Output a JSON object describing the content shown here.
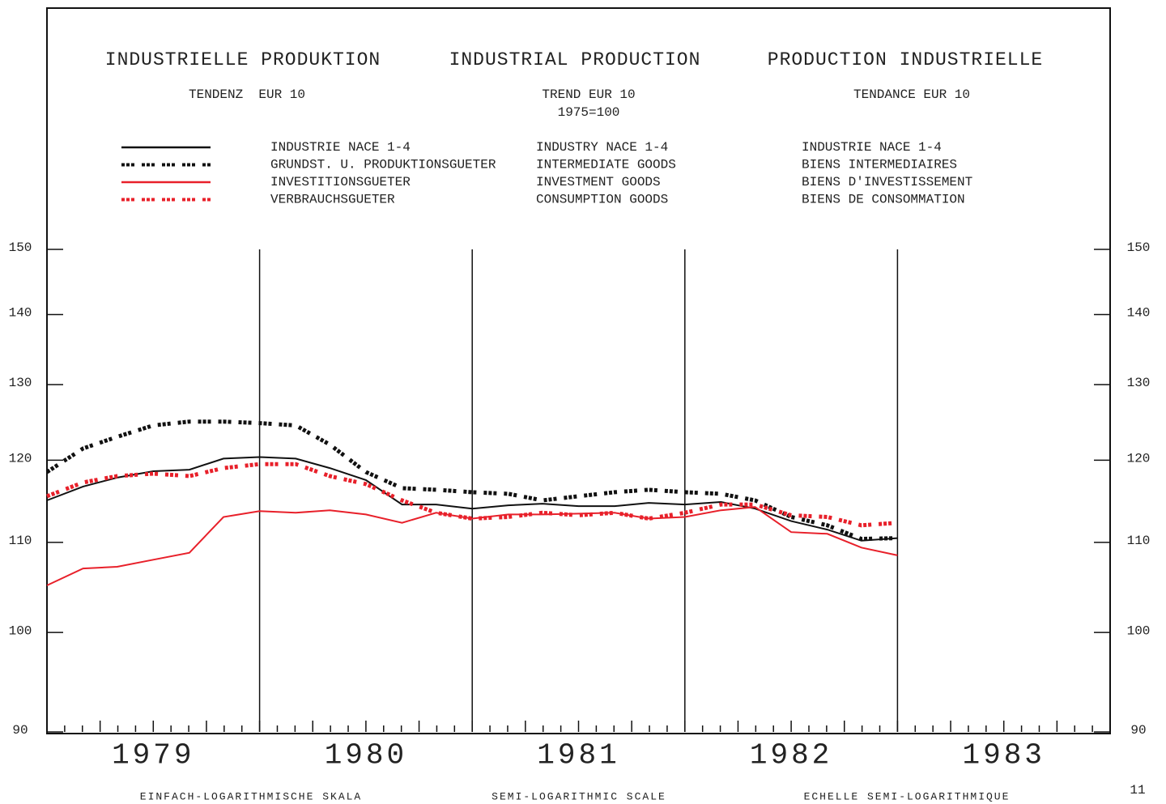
{
  "chart_data": {
    "type": "line",
    "titles": [
      "INDUSTRIELLE PRODUKTION",
      "INDUSTRIAL PRODUCTION",
      "PRODUCTION INDUSTRIELLE"
    ],
    "subtitles": [
      "TENDENZ  EUR 10",
      "TREND EUR 10",
      "TENDANCE EUR 10"
    ],
    "base": "1975=100",
    "footers": [
      "EINFACH-LOGARITHMISCHE SKALA",
      "SEMI-LOGARITHMIC SCALE",
      "ECHELLE SEMI-LOGARITHMIQUE"
    ],
    "page_number": "11",
    "categories": [
      "1979",
      "1980",
      "1981",
      "1982",
      "1983"
    ],
    "log_scale": true,
    "xlim": [
      1979,
      1984
    ],
    "xticks": [
      1980,
      1981,
      1982,
      1983
    ],
    "ylim": [
      90,
      150
    ],
    "yticks": [
      90,
      100,
      110,
      120,
      130,
      140,
      150
    ],
    "x": [
      1979,
      1979.17,
      1979.33,
      1979.5,
      1979.67,
      1979.83,
      1980,
      1980.17,
      1980.33,
      1980.5,
      1980.67,
      1980.83,
      1981,
      1981.17,
      1981.33,
      1981.5,
      1981.67,
      1981.83,
      1982,
      1982.17,
      1982.33,
      1982.5,
      1982.67,
      1982.83,
      1983
    ],
    "series": [
      {
        "name": "INDUSTRIE NACE 1-4",
        "name_en": "INDUSTRY NACE 1-4",
        "name_fr": "INDUSTRIE NACE 1-4",
        "color": "#111111",
        "dashed": false,
        "values": [
          115,
          116.7,
          117.8,
          118.6,
          118.8,
          120.2,
          120.4,
          120.2,
          119,
          117.5,
          114.5,
          114.5,
          114,
          114.4,
          114.6,
          114.3,
          114.3,
          114.7,
          114.5,
          114.8,
          114,
          112.5,
          111.5,
          110.2,
          110.5
        ]
      },
      {
        "name": "GRUNDST. U. PRODUKTIONSGUETER",
        "name_en": "INTERMEDIATE GOODS",
        "name_fr": "BIENS INTERMEDIAIRES",
        "color": "#111111",
        "dashed": true,
        "values": [
          118.5,
          121.5,
          123,
          124.5,
          125,
          125,
          124.8,
          124.5,
          122,
          118.5,
          116.5,
          116.3,
          116,
          115.8,
          115,
          115.5,
          116,
          116.3,
          116,
          115.8,
          115,
          113,
          112,
          110.4,
          110.5
        ]
      },
      {
        "name": "INVESTITIONSGUETER",
        "name_en": "INVESTMENT GOODS",
        "name_fr": "BIENS D'INVESTISSEMENT",
        "color": "#e8202a",
        "dashed": false,
        "values": [
          105.1,
          107,
          107.2,
          108,
          108.8,
          113,
          113.7,
          113.5,
          113.8,
          113.3,
          112.3,
          113.5,
          112.8,
          113.3,
          113.3,
          113.4,
          113.5,
          112.8,
          113,
          113.8,
          114.2,
          111.2,
          111,
          109.4,
          108.5
        ]
      },
      {
        "name": "VERBRAUCHSGUETER",
        "name_en": "CONSUMPTION GOODS",
        "name_fr": "BIENS DE CONSOMMATION",
        "color": "#e8202a",
        "dashed": true,
        "values": [
          115.5,
          117.2,
          118,
          118.3,
          118,
          119,
          119.5,
          119.5,
          118,
          117,
          115,
          113.5,
          112.8,
          113,
          113.5,
          113.2,
          113.5,
          112.8,
          113.5,
          114.5,
          114.5,
          113.2,
          113,
          112,
          112.3
        ]
      }
    ]
  }
}
